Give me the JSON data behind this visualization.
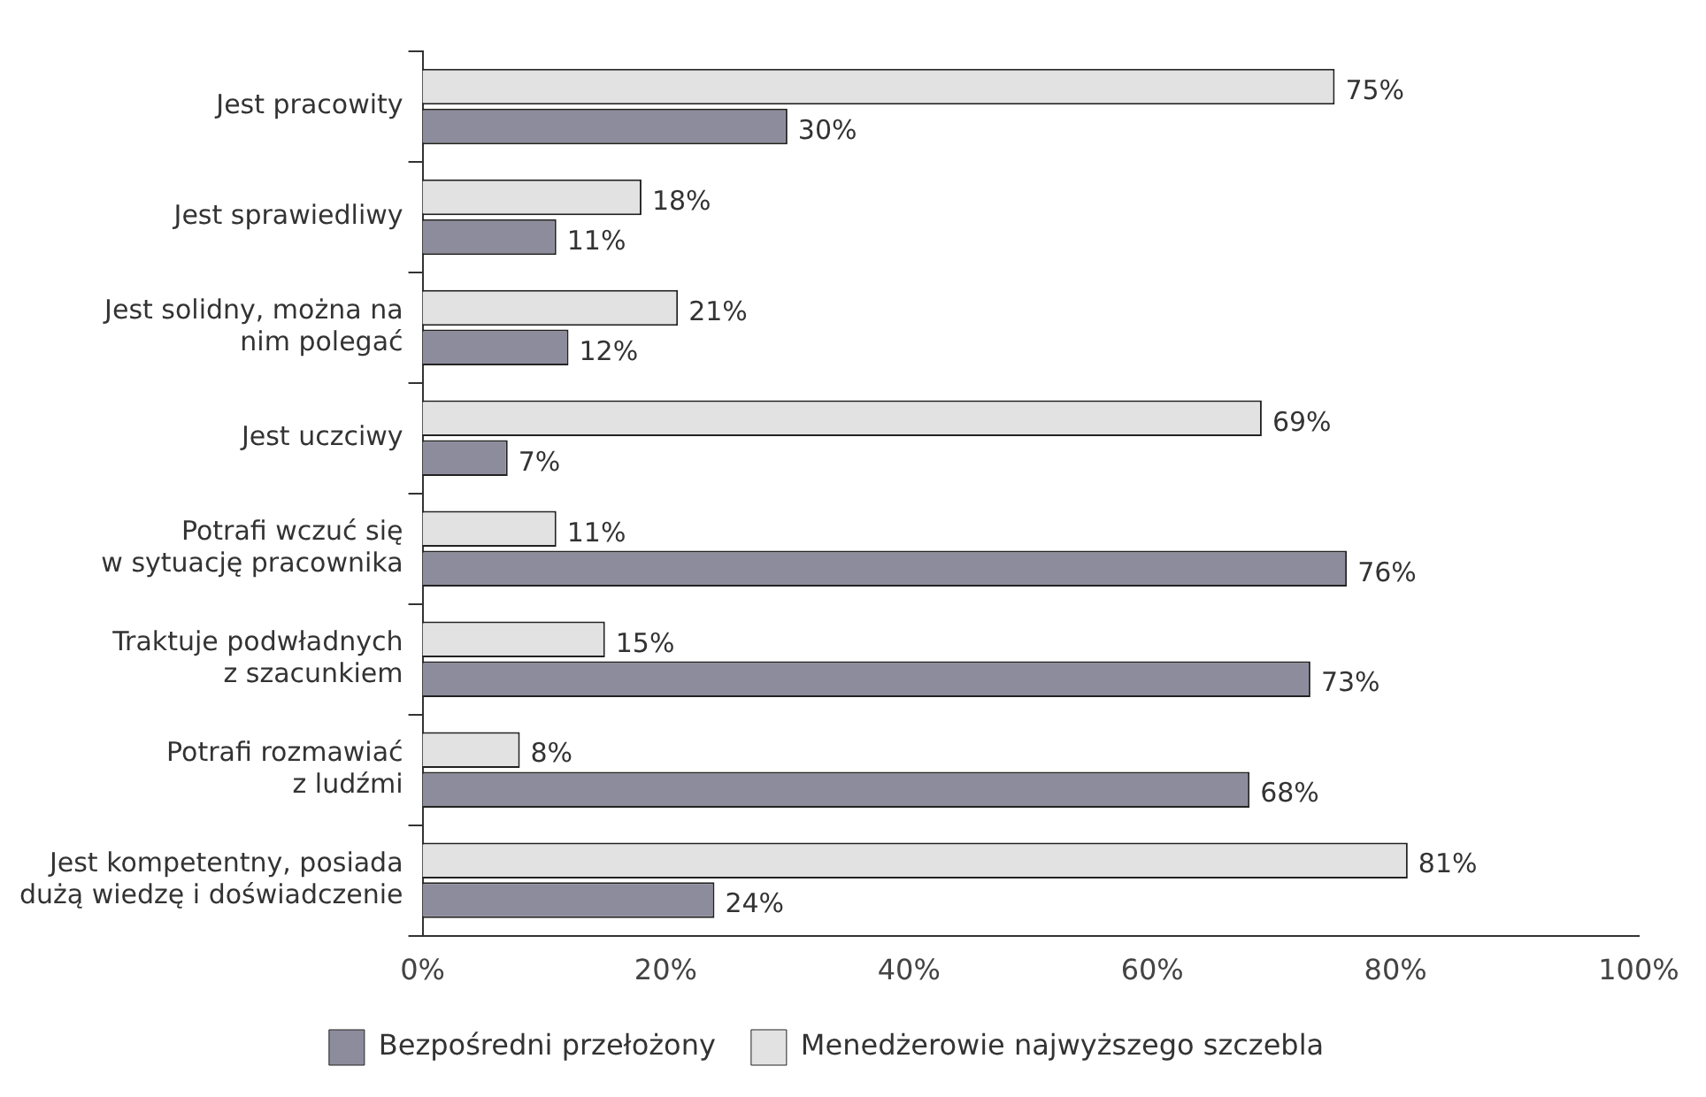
{
  "chart_data": {
    "type": "bar",
    "orientation": "horizontal",
    "categories": [
      "Jest pracowity",
      "Jest sprawiedliwy",
      "Jest solidny, można na\nnim polegać",
      "Jest uczciwy",
      "Potrafi wczuć się\nw sytuację pracownika",
      "Traktuje podwładnych\nz szacunkiem",
      "Potrafi rozmawiać\nz ludźmi",
      "Jest kompetentny, posiada\ndużą wiedzę i doświadczenie"
    ],
    "series": [
      {
        "name": "Menedżerowie najwyższego szczebla",
        "color": "#e2e2e2",
        "values": [
          75,
          18,
          21,
          69,
          11,
          15,
          8,
          81
        ],
        "value_labels": [
          "75%",
          "18%",
          "21%",
          "69%",
          "11%",
          "15%",
          "8%",
          "81%"
        ]
      },
      {
        "name": "Bezpośredni przełożony",
        "color": "#8c8c9c",
        "values": [
          30,
          11,
          12,
          7,
          76,
          73,
          68,
          24
        ],
        "value_labels": [
          "30%",
          "11%",
          "12%",
          "7%",
          "76%",
          "73%",
          "68%",
          "24%"
        ]
      }
    ],
    "xlim": [
      0,
      100
    ],
    "xticks": [
      {
        "value": 0,
        "label": "0%"
      },
      {
        "value": 20,
        "label": "20%"
      },
      {
        "value": 40,
        "label": "40%"
      },
      {
        "value": 60,
        "label": "60%"
      },
      {
        "value": 80,
        "label": "80%"
      },
      {
        "value": 100,
        "label": "100%"
      }
    ],
    "grid": false,
    "legend": "bottom"
  }
}
